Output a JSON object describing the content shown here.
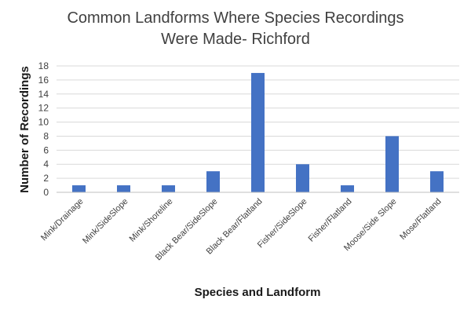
{
  "chart_data": {
    "type": "bar",
    "title_lines": [
      "Common Landforms Where Species Recordings",
      "Were Made- Richford"
    ],
    "xlabel": "Species and Landform",
    "ylabel": "Number of Recordings",
    "ylim": [
      0,
      18
    ],
    "yticks": [
      0,
      2,
      4,
      6,
      8,
      10,
      12,
      14,
      16,
      18
    ],
    "grid": true,
    "legend": "none",
    "bar_color": "#4472c4",
    "categories": [
      "Mink/Drainage",
      "Mink/SideSlope",
      "Mink/Shoreline",
      "Black Bear/SideSlope",
      "Black Bear/Flatland",
      "Fisher/SideSlope",
      "Fisher/Flatland",
      "Moose/Side Slope",
      "Mose/Flatland"
    ],
    "values": [
      1,
      1,
      1,
      3,
      17,
      4,
      1,
      8,
      3
    ]
  }
}
